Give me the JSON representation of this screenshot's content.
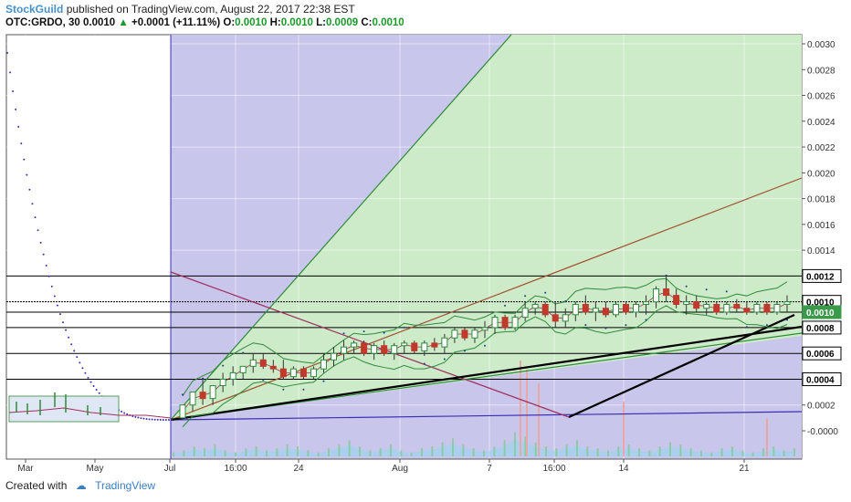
{
  "header": {
    "publisher": "StockGuild",
    "published_text": "published on TradingView.com, August 22, 2017 22:38 EST"
  },
  "quote": {
    "symbol_interval": "OTC:GRDO, 30",
    "last": "0.0010",
    "change": "+0.0001 (+11.11%)",
    "open_label": "O:",
    "open": "0.0010",
    "high_label": "H:",
    "high": "0.0010",
    "low_label": "L:",
    "low": "0.0009",
    "close_label": "C:",
    "close": "0.0010",
    "up_color": "#1a9a2a"
  },
  "footer": {
    "created_with": "Created with",
    "brand": "TradingView"
  },
  "colors": {
    "purple_zone": "#c9c6ec",
    "green_zone": "#cdebc8",
    "candle_up": "#2e8b3a",
    "candle_down": "#c0392b",
    "bollinger": "#2e8b3a",
    "trendline": "#000000",
    "brown_line": "#a0522d",
    "purple_line": "#3b2fb5",
    "volume": "#9fd3ee"
  },
  "chart_data": {
    "type": "candlestick",
    "x_tick_labels": [
      "Mar",
      "May",
      "Jul",
      "16:00",
      "24",
      "Aug",
      "7",
      "16:00",
      "14",
      "21"
    ],
    "y_tick_labels": [
      "0.0030",
      "0.0028",
      "0.0026",
      "0.0024",
      "0.0022",
      "0.0020",
      "0.0018",
      "0.0016",
      "0.0014",
      "0.0012",
      "0.0010",
      "0.0010",
      "0.0008",
      "0.0006",
      "0.0004",
      "0.0002",
      "-0.0000"
    ],
    "ylim": [
      -0.0002,
      0.0031
    ],
    "price_tags": [
      {
        "label": "0.0012",
        "style": "dark"
      },
      {
        "label": "0.0010",
        "style": "dark"
      },
      {
        "label": "0.0010",
        "style": "green"
      },
      {
        "label": "0.0008",
        "style": "dark"
      },
      {
        "label": "0.0006",
        "style": "dark"
      },
      {
        "label": "0.0004",
        "style": "dark"
      }
    ],
    "horizontal_levels": [
      0.0012,
      0.001,
      0.00092,
      0.0008,
      0.0006,
      0.0004
    ],
    "candles": [
      {
        "o": 0.0001,
        "h": 0.0002,
        "l": 0.0001,
        "c": 0.0002
      },
      {
        "o": 0.0002,
        "h": 0.0003,
        "l": 0.00015,
        "c": 0.0003
      },
      {
        "o": 0.0003,
        "h": 0.0004,
        "l": 0.0002,
        "c": 0.00025
      },
      {
        "o": 0.00025,
        "h": 0.00035,
        "l": 0.0002,
        "c": 0.00035
      },
      {
        "o": 0.00035,
        "h": 0.00045,
        "l": 0.0003,
        "c": 0.0004
      },
      {
        "o": 0.0004,
        "h": 0.0005,
        "l": 0.00035,
        "c": 0.00045
      },
      {
        "o": 0.00045,
        "h": 0.0005,
        "l": 0.0004,
        "c": 0.0005
      },
      {
        "o": 0.0005,
        "h": 0.0006,
        "l": 0.00045,
        "c": 0.00055
      },
      {
        "o": 0.00055,
        "h": 0.0006,
        "l": 0.00048,
        "c": 0.0005
      },
      {
        "o": 0.0005,
        "h": 0.00055,
        "l": 0.00045,
        "c": 0.00048
      },
      {
        "o": 0.00048,
        "h": 0.00055,
        "l": 0.0004,
        "c": 0.00042
      },
      {
        "o": 0.00042,
        "h": 0.0005,
        "l": 0.0004,
        "c": 0.00048
      },
      {
        "o": 0.00048,
        "h": 0.0005,
        "l": 0.0004,
        "c": 0.00042
      },
      {
        "o": 0.00042,
        "h": 0.0005,
        "l": 0.0004,
        "c": 0.00048
      },
      {
        "o": 0.00048,
        "h": 0.0006,
        "l": 0.00045,
        "c": 0.00055
      },
      {
        "o": 0.00055,
        "h": 0.00065,
        "l": 0.0005,
        "c": 0.0006
      },
      {
        "o": 0.0006,
        "h": 0.0007,
        "l": 0.00055,
        "c": 0.00065
      },
      {
        "o": 0.00065,
        "h": 0.0007,
        "l": 0.0006,
        "c": 0.00068
      },
      {
        "o": 0.00068,
        "h": 0.0007,
        "l": 0.00058,
        "c": 0.0006
      },
      {
        "o": 0.0006,
        "h": 0.00068,
        "l": 0.00055,
        "c": 0.00066
      },
      {
        "o": 0.00066,
        "h": 0.0007,
        "l": 0.00058,
        "c": 0.0006
      },
      {
        "o": 0.0006,
        "h": 0.00068,
        "l": 0.00055,
        "c": 0.00066
      },
      {
        "o": 0.00066,
        "h": 0.0007,
        "l": 0.0006,
        "c": 0.00068
      },
      {
        "o": 0.00068,
        "h": 0.0007,
        "l": 0.0006,
        "c": 0.00062
      },
      {
        "o": 0.00062,
        "h": 0.0007,
        "l": 0.00058,
        "c": 0.00068
      },
      {
        "o": 0.00068,
        "h": 0.00072,
        "l": 0.00062,
        "c": 0.00065
      },
      {
        "o": 0.00065,
        "h": 0.00075,
        "l": 0.0006,
        "c": 0.00072
      },
      {
        "o": 0.00072,
        "h": 0.0008,
        "l": 0.00068,
        "c": 0.00078
      },
      {
        "o": 0.00078,
        "h": 0.0008,
        "l": 0.0007,
        "c": 0.00072
      },
      {
        "o": 0.00072,
        "h": 0.0008,
        "l": 0.00068,
        "c": 0.00078
      },
      {
        "o": 0.00078,
        "h": 0.00085,
        "l": 0.00072,
        "c": 0.0008
      },
      {
        "o": 0.0008,
        "h": 0.0009,
        "l": 0.00075,
        "c": 0.00088
      },
      {
        "o": 0.00088,
        "h": 0.0009,
        "l": 0.00078,
        "c": 0.0008
      },
      {
        "o": 0.0008,
        "h": 0.0009,
        "l": 0.00078,
        "c": 0.00088
      },
      {
        "o": 0.00088,
        "h": 0.001,
        "l": 0.00085,
        "c": 0.00095
      },
      {
        "o": 0.00095,
        "h": 0.001,
        "l": 0.0009,
        "c": 0.00098
      },
      {
        "o": 0.00098,
        "h": 0.001,
        "l": 0.00088,
        "c": 0.0009
      },
      {
        "o": 0.0009,
        "h": 0.001,
        "l": 0.0008,
        "c": 0.00085
      },
      {
        "o": 0.00085,
        "h": 0.00095,
        "l": 0.0008,
        "c": 0.0009
      },
      {
        "o": 0.0009,
        "h": 0.001,
        "l": 0.00085,
        "c": 0.00098
      },
      {
        "o": 0.00098,
        "h": 0.00105,
        "l": 0.0009,
        "c": 0.00092
      },
      {
        "o": 0.00092,
        "h": 0.001,
        "l": 0.00085,
        "c": 0.00095
      },
      {
        "o": 0.00095,
        "h": 0.001,
        "l": 0.00088,
        "c": 0.0009
      },
      {
        "o": 0.0009,
        "h": 0.001,
        "l": 0.00088,
        "c": 0.00098
      },
      {
        "o": 0.00098,
        "h": 0.001,
        "l": 0.0009,
        "c": 0.00092
      },
      {
        "o": 0.00092,
        "h": 0.001,
        "l": 0.00088,
        "c": 0.00098
      },
      {
        "o": 0.00098,
        "h": 0.00105,
        "l": 0.0009,
        "c": 0.001
      },
      {
        "o": 0.001,
        "h": 0.00112,
        "l": 0.00095,
        "c": 0.0011
      },
      {
        "o": 0.0011,
        "h": 0.0012,
        "l": 0.001,
        "c": 0.00105
      },
      {
        "o": 0.00105,
        "h": 0.0011,
        "l": 0.00095,
        "c": 0.00098
      },
      {
        "o": 0.00098,
        "h": 0.00105,
        "l": 0.0009,
        "c": 0.001
      },
      {
        "o": 0.001,
        "h": 0.00105,
        "l": 0.00092,
        "c": 0.00095
      },
      {
        "o": 0.00095,
        "h": 0.001,
        "l": 0.0009,
        "c": 0.00098
      },
      {
        "o": 0.00098,
        "h": 0.001,
        "l": 0.0009,
        "c": 0.00092
      },
      {
        "o": 0.00092,
        "h": 0.001,
        "l": 0.0009,
        "c": 0.00098
      },
      {
        "o": 0.00098,
        "h": 0.00102,
        "l": 0.00092,
        "c": 0.00095
      },
      {
        "o": 0.00095,
        "h": 0.001,
        "l": 0.0009,
        "c": 0.00092
      },
      {
        "o": 0.00092,
        "h": 0.001,
        "l": 0.0009,
        "c": 0.00098
      },
      {
        "o": 0.00098,
        "h": 0.001,
        "l": 0.0009,
        "c": 0.00092
      },
      {
        "o": 0.00092,
        "h": 0.001,
        "l": 0.0009,
        "c": 0.00098
      },
      {
        "o": 0.00098,
        "h": 0.00105,
        "l": 0.00092,
        "c": 0.001
      }
    ],
    "volume": [
      2,
      3,
      5,
      4,
      6,
      3,
      2,
      4,
      5,
      3,
      4,
      6,
      5,
      3,
      2,
      4,
      6,
      8,
      5,
      3,
      4,
      6,
      3,
      2,
      4,
      5,
      7,
      9,
      6,
      4,
      3,
      5,
      8,
      12,
      10,
      7,
      5,
      4,
      6,
      8,
      5,
      4,
      3,
      5,
      6,
      4,
      3,
      5,
      7,
      6,
      4,
      3,
      2,
      4,
      5,
      3,
      2,
      4,
      5,
      3,
      4
    ]
  }
}
